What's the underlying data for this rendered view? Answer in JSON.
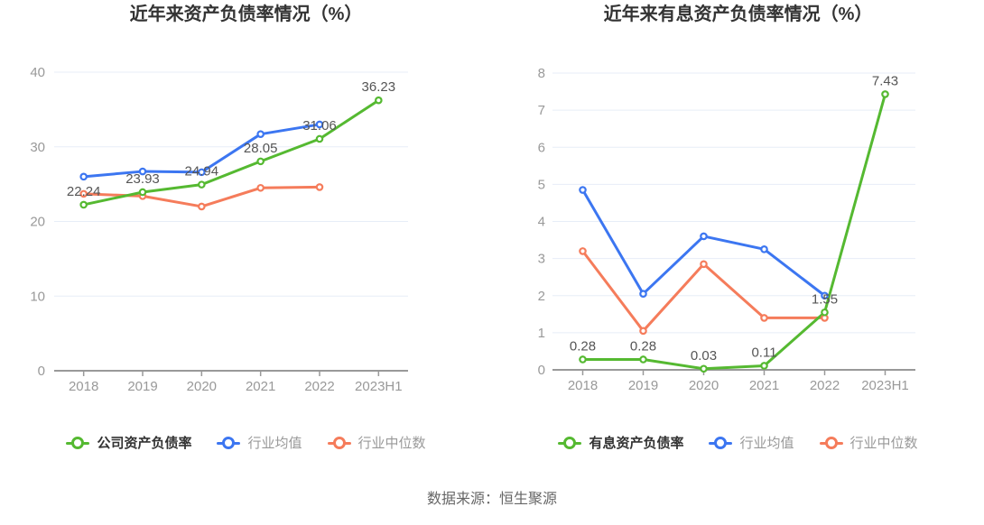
{
  "footer": {
    "source_text": "数据来源：恒生聚源"
  },
  "style": {
    "background": "#ffffff",
    "grid_color": "#e7edf7",
    "axis_color": "#999999",
    "tick_label_color": "#999999",
    "data_label_color": "#555555",
    "title_color": "#333333",
    "footer_color": "#666666",
    "green": "#55b931",
    "blue": "#3c76f1",
    "orange": "#f57c5b"
  },
  "chart_data": [
    {
      "type": "line",
      "title": "近年来资产负债率情况（%）",
      "categories": [
        "2018",
        "2019",
        "2020",
        "2021",
        "2022",
        "2023H1"
      ],
      "xlabel": "",
      "ylabel": "",
      "ylim": [
        0,
        40
      ],
      "ytick_step": 10,
      "grid": true,
      "legend_position": "bottom",
      "series": [
        {
          "name": "公司资产负债率",
          "color": "#55b931",
          "legend_text_color": "#333333",
          "data_labels": true,
          "values": [
            22.24,
            23.93,
            24.94,
            28.05,
            31.06,
            36.23
          ]
        },
        {
          "name": "行业均值",
          "color": "#3c76f1",
          "legend_text_color": "#999999",
          "data_labels": false,
          "values": [
            26.0,
            26.7,
            26.6,
            31.7,
            33.0
          ]
        },
        {
          "name": "行业中位数",
          "color": "#f57c5b",
          "legend_text_color": "#999999",
          "data_labels": false,
          "values": [
            23.7,
            23.4,
            22.0,
            24.5,
            24.6
          ]
        }
      ]
    },
    {
      "type": "line",
      "title": "近年来有息资产负债率情况（%）",
      "categories": [
        "2018",
        "2019",
        "2020",
        "2021",
        "2022",
        "2023H1"
      ],
      "xlabel": "",
      "ylabel": "",
      "ylim": [
        0,
        8
      ],
      "ytick_step": 1,
      "grid": true,
      "legend_position": "bottom",
      "series": [
        {
          "name": "有息资产负债率",
          "color": "#55b931",
          "legend_text_color": "#333333",
          "data_labels": true,
          "values": [
            0.28,
            0.28,
            0.03,
            0.11,
            1.55,
            7.43
          ]
        },
        {
          "name": "行业均值",
          "color": "#3c76f1",
          "legend_text_color": "#999999",
          "data_labels": false,
          "values": [
            4.85,
            2.05,
            3.6,
            3.25,
            2.0
          ]
        },
        {
          "name": "行业中位数",
          "color": "#f57c5b",
          "legend_text_color": "#999999",
          "data_labels": false,
          "values": [
            3.2,
            1.05,
            2.85,
            1.4,
            1.4
          ]
        }
      ]
    }
  ]
}
